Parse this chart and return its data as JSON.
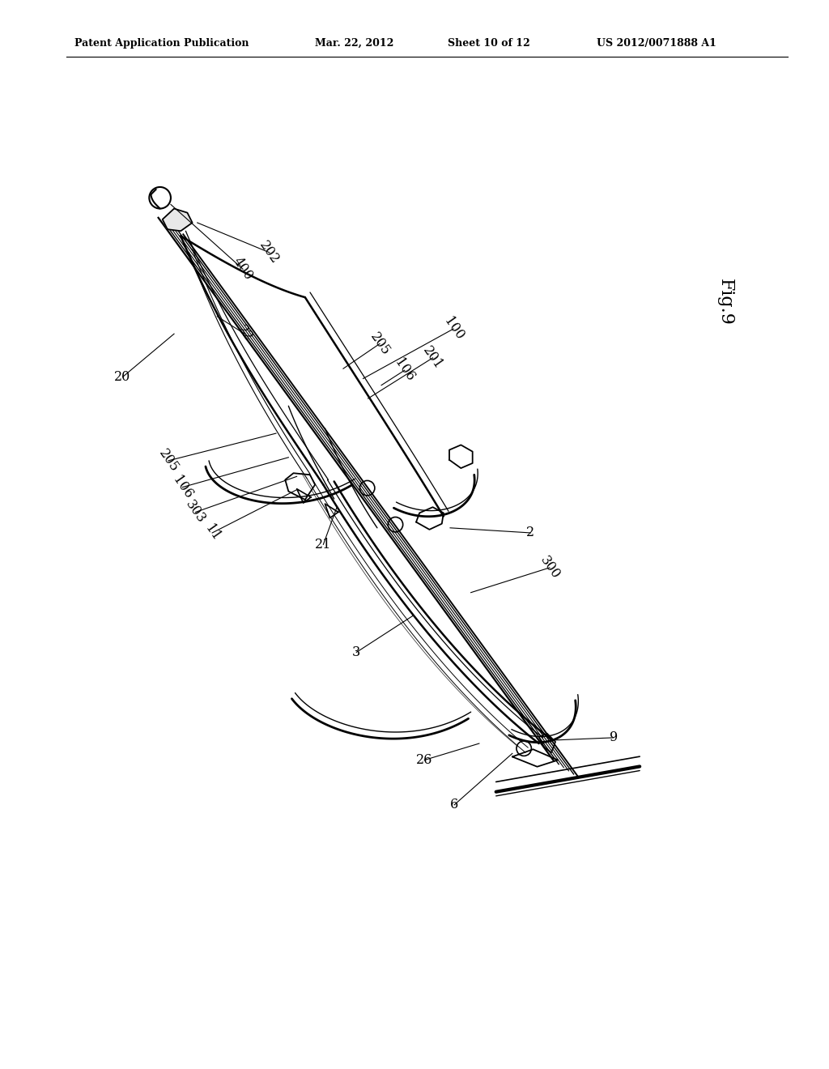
{
  "bg_color": "#ffffff",
  "title_line1": "Patent Application Publication",
  "title_date": "Mar. 22, 2012",
  "title_sheet": "Sheet 10 of 12",
  "title_patent": "US 2012/0071888 A1",
  "fig_label": "Fig.9",
  "label_fontsize": 11.5,
  "header_fontsize": 9
}
